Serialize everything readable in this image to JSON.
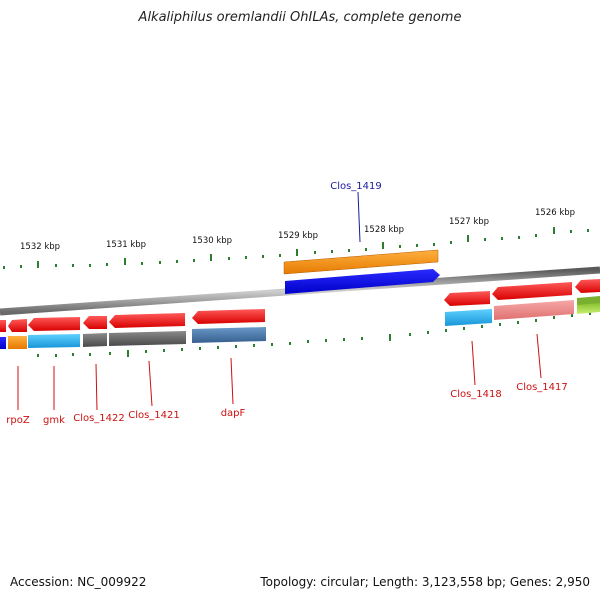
{
  "title": "Alkaliphilus oremlandii OhILAs, complete genome",
  "footer": {
    "accession": "Accession: NC_009922",
    "stats": "Topology: circular; Length: 3,123,558 bp; Genes: 2,950"
  },
  "scale": {
    "tick_labels": [
      "1532 kbp",
      "1531 kbp",
      "1530 kbp",
      "1529 kbp",
      "1528 kbp",
      "1527 kbp",
      "1526 kbp"
    ]
  },
  "gene_labels": {
    "Clos_1419": "Clos_1419",
    "rpoZ": "rpoZ",
    "gmk": "gmk",
    "Clos_1422": "Clos_1422",
    "Clos_1421": "Clos_1421",
    "dapF": "dapF",
    "Clos_1418": "Clos_1418",
    "Clos_1417": "Clos_1417"
  },
  "colors": {
    "backbone": "#8a8a8a",
    "scale_tick": "#2e7d2e",
    "cds_forward": "#ff8c00",
    "cds_reverse": "#ee1111",
    "feature_blue": "#0000ee",
    "feature_cyan": "#1ea7e8",
    "feature_gray": "#6e6e6e",
    "feature_steel": "#4a78a8",
    "feature_pink": "#f08a8a",
    "feature_lime": "#99d23a",
    "label_forward": "#1a1aa0",
    "label_reverse": "#cc1111"
  }
}
